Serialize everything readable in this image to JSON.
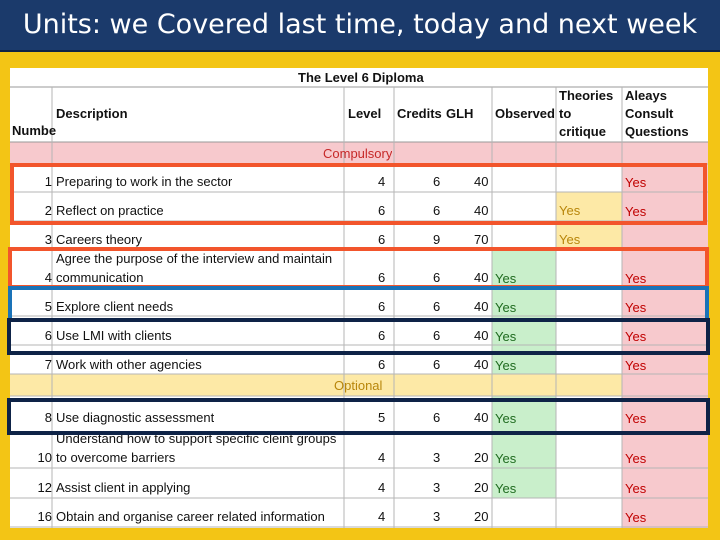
{
  "slide": {
    "title": "Units: we Covered last time, today and next week"
  },
  "table": {
    "caption": "The Level 6 Diploma",
    "headers": {
      "number": "Numbe",
      "description": "Description",
      "level": "Level",
      "credits": "Credits",
      "glh": "GLH",
      "observed": "Observed",
      "theories_line1": "Theories",
      "theories_line2": "to",
      "theories_line3": "critique",
      "consult_line1": "Aleays",
      "consult_line2": "Consult",
      "consult_line3": "Questions"
    },
    "sections": {
      "compulsory": "Compulsory",
      "optional": "Optional"
    },
    "rows": [
      {
        "num": "1",
        "desc": "Preparing to work in the sector",
        "desc2": "",
        "level": "4",
        "credits": "6",
        "glh": "40",
        "observed": "",
        "theories": "",
        "consult": "Yes"
      },
      {
        "num": "2",
        "desc": "Reflect on practice",
        "desc2": "",
        "level": "6",
        "credits": "6",
        "glh": "40",
        "observed": "",
        "theories": "Yes",
        "consult": "Yes"
      },
      {
        "num": "3",
        "desc": "Careers theory",
        "desc2": "",
        "level": "6",
        "credits": "9",
        "glh": "70",
        "observed": "",
        "theories": "Yes",
        "consult": ""
      },
      {
        "num": "4",
        "desc": "Agree the purpose of the interview and maintain",
        "desc2": "communication",
        "level": "6",
        "credits": "6",
        "glh": "40",
        "observed": "Yes",
        "theories": "",
        "consult": "Yes"
      },
      {
        "num": "5",
        "desc": "Explore client needs",
        "desc2": "",
        "level": "6",
        "credits": "6",
        "glh": "40",
        "observed": "Yes",
        "theories": "",
        "consult": "Yes"
      },
      {
        "num": "6",
        "desc": "Use LMI with clients",
        "desc2": "",
        "level": "6",
        "credits": "6",
        "glh": "40",
        "observed": "Yes",
        "theories": "",
        "consult": "Yes"
      },
      {
        "num": "7",
        "desc": "Work with other agencies",
        "desc2": "",
        "level": "6",
        "credits": "6",
        "glh": "40",
        "observed": "Yes",
        "theories": "",
        "consult": "Yes"
      },
      {
        "num": "8",
        "desc": "Use diagnostic assessment",
        "desc2": "",
        "level": "5",
        "credits": "6",
        "glh": "40",
        "observed": "Yes",
        "theories": "",
        "consult": "Yes"
      },
      {
        "num": "10",
        "desc": "Understand how to support specific cleint groups",
        "desc2": "to overcome barriers",
        "level": "4",
        "credits": "3",
        "glh": "20",
        "observed": "Yes",
        "theories": "",
        "consult": "Yes"
      },
      {
        "num": "12",
        "desc": "Assist client in applying",
        "desc2": "",
        "level": "4",
        "credits": "3",
        "glh": "20",
        "observed": "Yes",
        "theories": "",
        "consult": "Yes"
      },
      {
        "num": "16",
        "desc": "Obtain and organise career related information",
        "desc2": "",
        "level": "4",
        "credits": "3",
        "glh": "20",
        "observed": "",
        "theories": "",
        "consult": "Yes"
      }
    ]
  },
  "colors": {
    "background": "#f3c515",
    "title_bar": "#1b3a6b",
    "compulsory_band": "#f7c9cd",
    "optional_band": "#fde9a6",
    "observed_fill": "#c9efcb",
    "theories_fill": "#fde9a6",
    "consult_fill": "#f7c9cd",
    "highlight_orange": "#f2552c",
    "highlight_blue": "#1a73b8",
    "highlight_navy": "#0e2347"
  }
}
